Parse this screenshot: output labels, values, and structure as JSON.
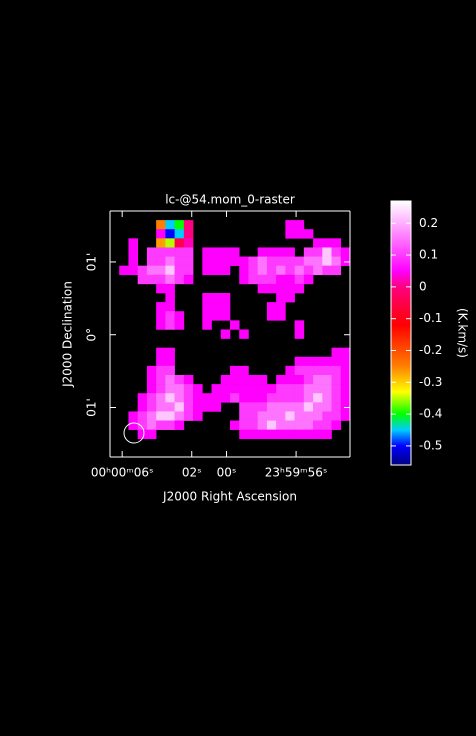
{
  "chart_data": {
    "type": "heatmap",
    "title": "lc-@54.mom_0-raster",
    "x_label": "J2000 Right Ascension",
    "y_label": "J2000 Declination",
    "colorbar_label": "(K.km/s)",
    "xlim": [
      6.7,
      -7.1
    ],
    "ylim": [
      -1.68,
      1.7
    ],
    "zlim": [
      -0.56,
      0.27
    ],
    "xticks": [
      {
        "value": 6,
        "label": "00ʰ00ᵐ06ˢ"
      },
      {
        "value": 2,
        "label": "02ˢ"
      },
      {
        "value": 0,
        "label": "00ˢ"
      },
      {
        "value": -4,
        "label": "23ʰ59ᵐ56ˢ"
      }
    ],
    "yticks": [
      {
        "value": 1,
        "label": "01'"
      },
      {
        "value": 0,
        "label": "0°"
      },
      {
        "value": -1,
        "label": "01'"
      }
    ],
    "zticks": [
      0.2,
      0.1,
      0,
      -0.1,
      -0.2,
      -0.3,
      -0.4,
      -0.5
    ],
    "colormap": [
      [
        -0.56,
        "#000080"
      ],
      [
        -0.5,
        "#0000ff"
      ],
      [
        -0.45,
        "#00ccff"
      ],
      [
        -0.4,
        "#00ff00"
      ],
      [
        -0.33,
        "#ffff00"
      ],
      [
        -0.25,
        "#ff8000"
      ],
      [
        -0.12,
        "#ff0000"
      ],
      [
        0,
        "#ff0080"
      ],
      [
        0.05,
        "#ff00ff"
      ],
      [
        0.27,
        "#ffffff"
      ]
    ],
    "values": [
      [
        null,
        null,
        null,
        null,
        null,
        null,
        null,
        null,
        null,
        null,
        null,
        null,
        null,
        null,
        null,
        null,
        null,
        null,
        null,
        null,
        null,
        null,
        null,
        null,
        null,
        null
      ],
      [
        null,
        null,
        null,
        null,
        null,
        -0.25,
        -0.45,
        -0.4,
        0,
        null,
        null,
        null,
        null,
        null,
        null,
        null,
        null,
        null,
        null,
        0.05,
        0.05,
        null,
        null,
        null,
        null,
        null
      ],
      [
        null,
        null,
        null,
        null,
        null,
        0.05,
        -0.5,
        -0.45,
        0,
        null,
        null,
        null,
        null,
        null,
        null,
        null,
        null,
        null,
        null,
        0.05,
        0.05,
        0.05,
        null,
        null,
        null,
        null
      ],
      [
        null,
        null,
        0.05,
        null,
        null,
        -0.27,
        -0.35,
        -0.05,
        0.02,
        null,
        null,
        null,
        null,
        null,
        null,
        null,
        null,
        null,
        null,
        null,
        null,
        null,
        0.05,
        0.05,
        0.05,
        null
      ],
      [
        null,
        null,
        0.05,
        null,
        0.1,
        0.1,
        0.1,
        0.1,
        0.1,
        null,
        0.05,
        0.05,
        0.05,
        0.05,
        null,
        null,
        0.05,
        0.05,
        0.05,
        0.05,
        null,
        0.1,
        0.1,
        0.22,
        0.1,
        0.05
      ],
      [
        null,
        null,
        0.05,
        null,
        0.1,
        0.1,
        0.15,
        0.1,
        0.1,
        null,
        0.05,
        0.05,
        0.05,
        0.05,
        0.05,
        0.1,
        0.15,
        0.1,
        0.1,
        0.1,
        0.1,
        0.15,
        0.15,
        0.22,
        0.15,
        0.05
      ],
      [
        null,
        0.05,
        0.05,
        0.1,
        0.15,
        0.15,
        0.22,
        0.1,
        0.1,
        null,
        0.05,
        0.05,
        0.05,
        null,
        0.05,
        0.1,
        0.15,
        0.1,
        0.15,
        0.1,
        0.15,
        0.1,
        0.15,
        0.1,
        0.1,
        null
      ],
      [
        null,
        null,
        null,
        0.1,
        0.1,
        0.1,
        0.15,
        0.1,
        0.05,
        null,
        null,
        null,
        null,
        null,
        0.05,
        0.1,
        0.1,
        0.1,
        0.05,
        0.05,
        0.1,
        0.05,
        null,
        null,
        null,
        null
      ],
      [
        null,
        null,
        null,
        null,
        null,
        0.05,
        0.05,
        null,
        null,
        null,
        null,
        null,
        null,
        null,
        null,
        null,
        0.05,
        0.05,
        0.05,
        0.05,
        0.05,
        null,
        null,
        null,
        null,
        null
      ],
      [
        null,
        null,
        null,
        null,
        null,
        null,
        0.05,
        null,
        null,
        null,
        0.05,
        0.05,
        0.05,
        null,
        null,
        null,
        null,
        null,
        0.05,
        0.05,
        null,
        null,
        null,
        null,
        null,
        null
      ],
      [
        null,
        null,
        null,
        null,
        null,
        0.05,
        0.05,
        null,
        null,
        null,
        0.05,
        0.05,
        0.05,
        null,
        null,
        null,
        null,
        0.05,
        0.05,
        null,
        null,
        null,
        null,
        null,
        null,
        null
      ],
      [
        null,
        null,
        null,
        null,
        null,
        0.05,
        0.1,
        0.05,
        null,
        null,
        0.05,
        0.05,
        0.05,
        null,
        null,
        null,
        null,
        0.05,
        0.05,
        null,
        null,
        null,
        null,
        null,
        null,
        null
      ],
      [
        null,
        null,
        null,
        null,
        null,
        0.05,
        0.1,
        0.05,
        null,
        null,
        0.05,
        null,
        null,
        0.05,
        null,
        null,
        null,
        null,
        null,
        null,
        0.05,
        null,
        null,
        null,
        null,
        null
      ],
      [
        null,
        null,
        null,
        null,
        null,
        null,
        null,
        null,
        null,
        null,
        null,
        null,
        0.05,
        null,
        0.05,
        null,
        null,
        null,
        null,
        null,
        0.05,
        null,
        null,
        null,
        null,
        null
      ],
      [
        null,
        null,
        null,
        null,
        null,
        null,
        null,
        null,
        null,
        null,
        null,
        null,
        null,
        null,
        null,
        null,
        null,
        null,
        null,
        null,
        null,
        null,
        null,
        null,
        null,
        null
      ],
      [
        null,
        null,
        null,
        null,
        null,
        0.05,
        0.05,
        null,
        null,
        null,
        null,
        null,
        null,
        null,
        null,
        null,
        null,
        null,
        null,
        null,
        null,
        null,
        null,
        null,
        0.05,
        0.05
      ],
      [
        null,
        null,
        null,
        null,
        null,
        0.05,
        0.05,
        null,
        null,
        null,
        null,
        null,
        null,
        null,
        null,
        null,
        null,
        null,
        null,
        null,
        0.05,
        0.05,
        0.05,
        0.05,
        0.05,
        0.05
      ],
      [
        null,
        null,
        null,
        null,
        0.05,
        0.1,
        0.1,
        null,
        null,
        null,
        null,
        null,
        null,
        0.05,
        0.05,
        null,
        null,
        null,
        null,
        0.05,
        0.1,
        0.1,
        0.1,
        0.1,
        0.1,
        0.05
      ],
      [
        null,
        null,
        null,
        null,
        0.05,
        0.1,
        0.15,
        0.1,
        0.05,
        null,
        null,
        null,
        0.05,
        0.05,
        0.05,
        0.05,
        0.05,
        null,
        0.05,
        0.05,
        0.05,
        0.1,
        0.15,
        0.15,
        0.1,
        0.05
      ],
      [
        null,
        null,
        null,
        null,
        0.05,
        0.1,
        0.15,
        0.15,
        0.1,
        0.05,
        null,
        0.05,
        0.05,
        0.05,
        0.05,
        0.05,
        0.05,
        0.05,
        0.1,
        0.1,
        0.1,
        0.15,
        0.15,
        0.15,
        0.1,
        0.05
      ],
      [
        null,
        null,
        null,
        0.05,
        0.1,
        0.15,
        0.22,
        0.15,
        0.1,
        0.05,
        0.05,
        0.05,
        0.05,
        0.1,
        0.05,
        0.05,
        0.05,
        0.1,
        0.1,
        0.1,
        0.1,
        0.15,
        0.22,
        0.15,
        0.1,
        0.05
      ],
      [
        null,
        null,
        null,
        0.05,
        0.1,
        0.15,
        0.15,
        0.22,
        0.1,
        0.05,
        0.05,
        0.05,
        null,
        null,
        0.1,
        0.1,
        0.1,
        0.15,
        0.15,
        0.15,
        0.15,
        0.22,
        0.15,
        0.15,
        0.1,
        0.05
      ],
      [
        null,
        null,
        0.05,
        0.1,
        0.15,
        0.22,
        0.22,
        0.15,
        0.1,
        0.05,
        null,
        null,
        null,
        null,
        0.1,
        0.1,
        0.15,
        0.15,
        0.15,
        0.22,
        0.15,
        0.15,
        0.15,
        0.1,
        0.1,
        0.05
      ],
      [
        null,
        null,
        0.05,
        0.1,
        0.15,
        0.1,
        0.1,
        0.05,
        null,
        null,
        null,
        null,
        null,
        0.05,
        0.1,
        0.1,
        0.15,
        0.22,
        0.15,
        0.15,
        0.15,
        0.15,
        0.1,
        0.1,
        0.05,
        null
      ],
      [
        null,
        null,
        null,
        0.05,
        0.05,
        null,
        null,
        null,
        null,
        null,
        null,
        null,
        null,
        null,
        0.05,
        0.05,
        0.05,
        0.05,
        0.05,
        0.05,
        0.05,
        0.05,
        0.05,
        0.05,
        null,
        null
      ],
      [
        null,
        null,
        null,
        null,
        null,
        null,
        null,
        null,
        null,
        null,
        null,
        null,
        null,
        null,
        null,
        null,
        null,
        null,
        null,
        null,
        null,
        null,
        null,
        null,
        null,
        null
      ],
      [
        null,
        null,
        null,
        null,
        null,
        null,
        null,
        null,
        null,
        null,
        null,
        null,
        null,
        null,
        null,
        null,
        null,
        null,
        null,
        null,
        null,
        null,
        null,
        null,
        null,
        null
      ]
    ]
  }
}
